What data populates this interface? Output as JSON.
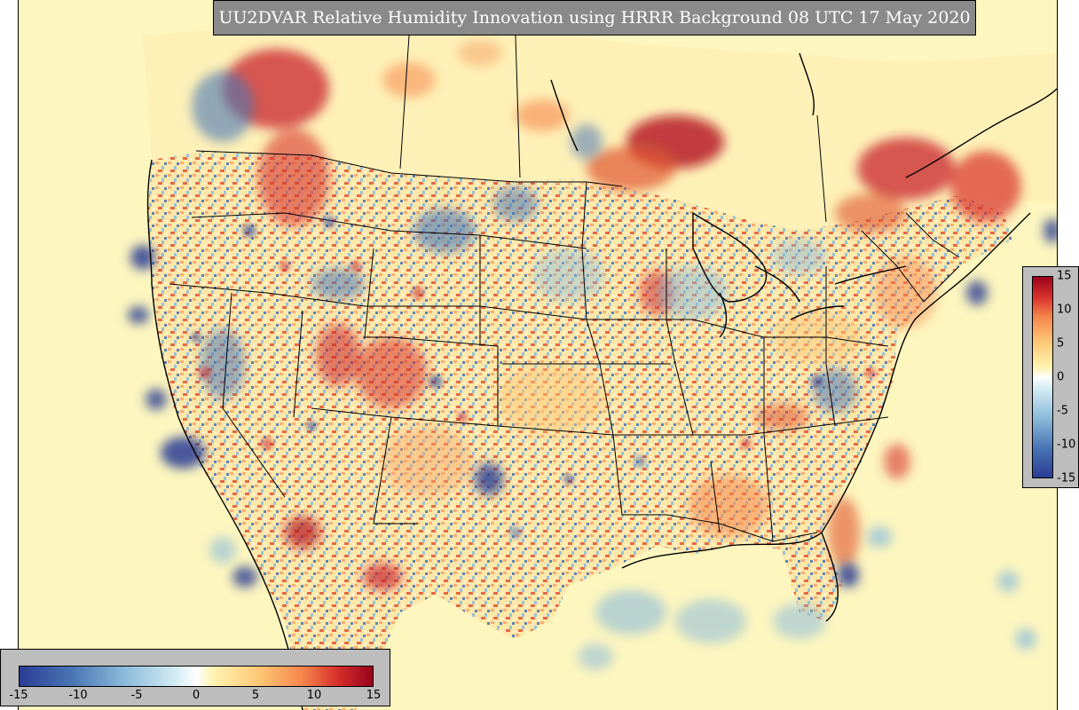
{
  "title": "UU2DVAR Relative Humidity Innovation using HRRR Background 08 UTC 17 May 2020",
  "colorbar_vertical": {
    "ticks": [
      "15",
      "10",
      "5",
      "0",
      "-5",
      "-10",
      "-15"
    ],
    "min": -15,
    "max": 15
  },
  "colorbar_horizontal": {
    "ticks": [
      "-15",
      "-10",
      "-5",
      "0",
      "5",
      "10",
      "15"
    ],
    "min": -15,
    "max": 15
  },
  "colors": {
    "background_field": "#fdf6bf",
    "banner": "#8a8a8a",
    "colorbar_panel": "#bdbdbd",
    "strong_negative": "#2b3d95",
    "negative": "#8cbcdb",
    "neutral": "#ffffff",
    "positive": "#f6864d",
    "strong_positive": "#99031d"
  }
}
